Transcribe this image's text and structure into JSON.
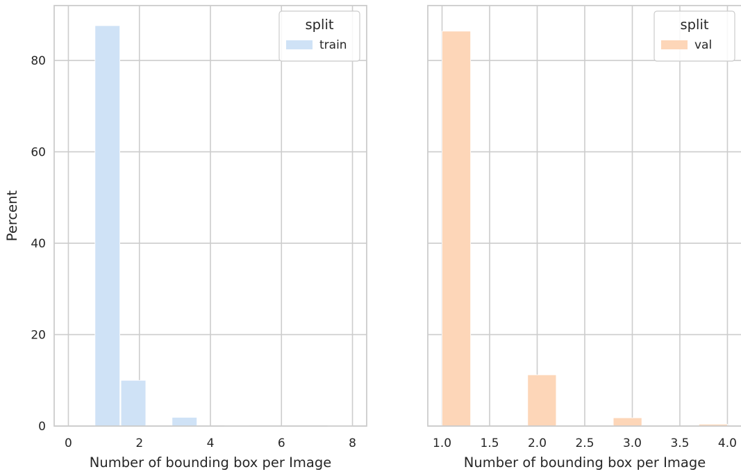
{
  "chart_data": [
    {
      "type": "bar",
      "panel": "left",
      "title": "",
      "xlabel": "Number of bounding box per Image",
      "ylabel": "Percent",
      "xlim": [
        -0.4,
        8.4
      ],
      "ylim": [
        0,
        92
      ],
      "xticks": [
        0,
        2,
        4,
        6,
        8
      ],
      "yticks": [
        0,
        20,
        40,
        60,
        80
      ],
      "grid": true,
      "legend": {
        "title": "split",
        "position": "top-right",
        "entries": [
          "train"
        ]
      },
      "series": [
        {
          "name": "train",
          "color": "#cfe2f6",
          "bins": [
            {
              "x0": 0.75,
              "x1": 1.45,
              "value": 87.6
            },
            {
              "x0": 1.48,
              "x1": 2.18,
              "value": 10.0
            },
            {
              "x0": 2.92,
              "x1": 3.62,
              "value": 1.9
            },
            {
              "x0": 4.4,
              "x1": 5.1,
              "value": 0.1
            },
            {
              "x0": 7.3,
              "x1": 8.0,
              "value": 0.05
            }
          ]
        }
      ]
    },
    {
      "type": "bar",
      "panel": "right",
      "title": "",
      "xlabel": "Number of bounding box per Image",
      "ylabel": "",
      "xlim": [
        0.85,
        4.15
      ],
      "ylim": [
        0,
        92
      ],
      "xticks": [
        "1.0",
        "1.5",
        "2.0",
        "2.5",
        "3.0",
        "3.5",
        "4.0"
      ],
      "yticks": [
        0,
        20,
        40,
        60,
        80
      ],
      "grid": true,
      "legend": {
        "title": "split",
        "position": "top-right",
        "entries": [
          "val"
        ]
      },
      "series": [
        {
          "name": "val",
          "color": "#fdd6b8",
          "bins": [
            {
              "x0": 1.0,
              "x1": 1.3,
              "value": 86.4
            },
            {
              "x0": 1.9,
              "x1": 2.2,
              "value": 11.2
            },
            {
              "x0": 2.8,
              "x1": 3.1,
              "value": 1.8
            },
            {
              "x0": 3.7,
              "x1": 4.0,
              "value": 0.4
            }
          ]
        }
      ]
    }
  ]
}
